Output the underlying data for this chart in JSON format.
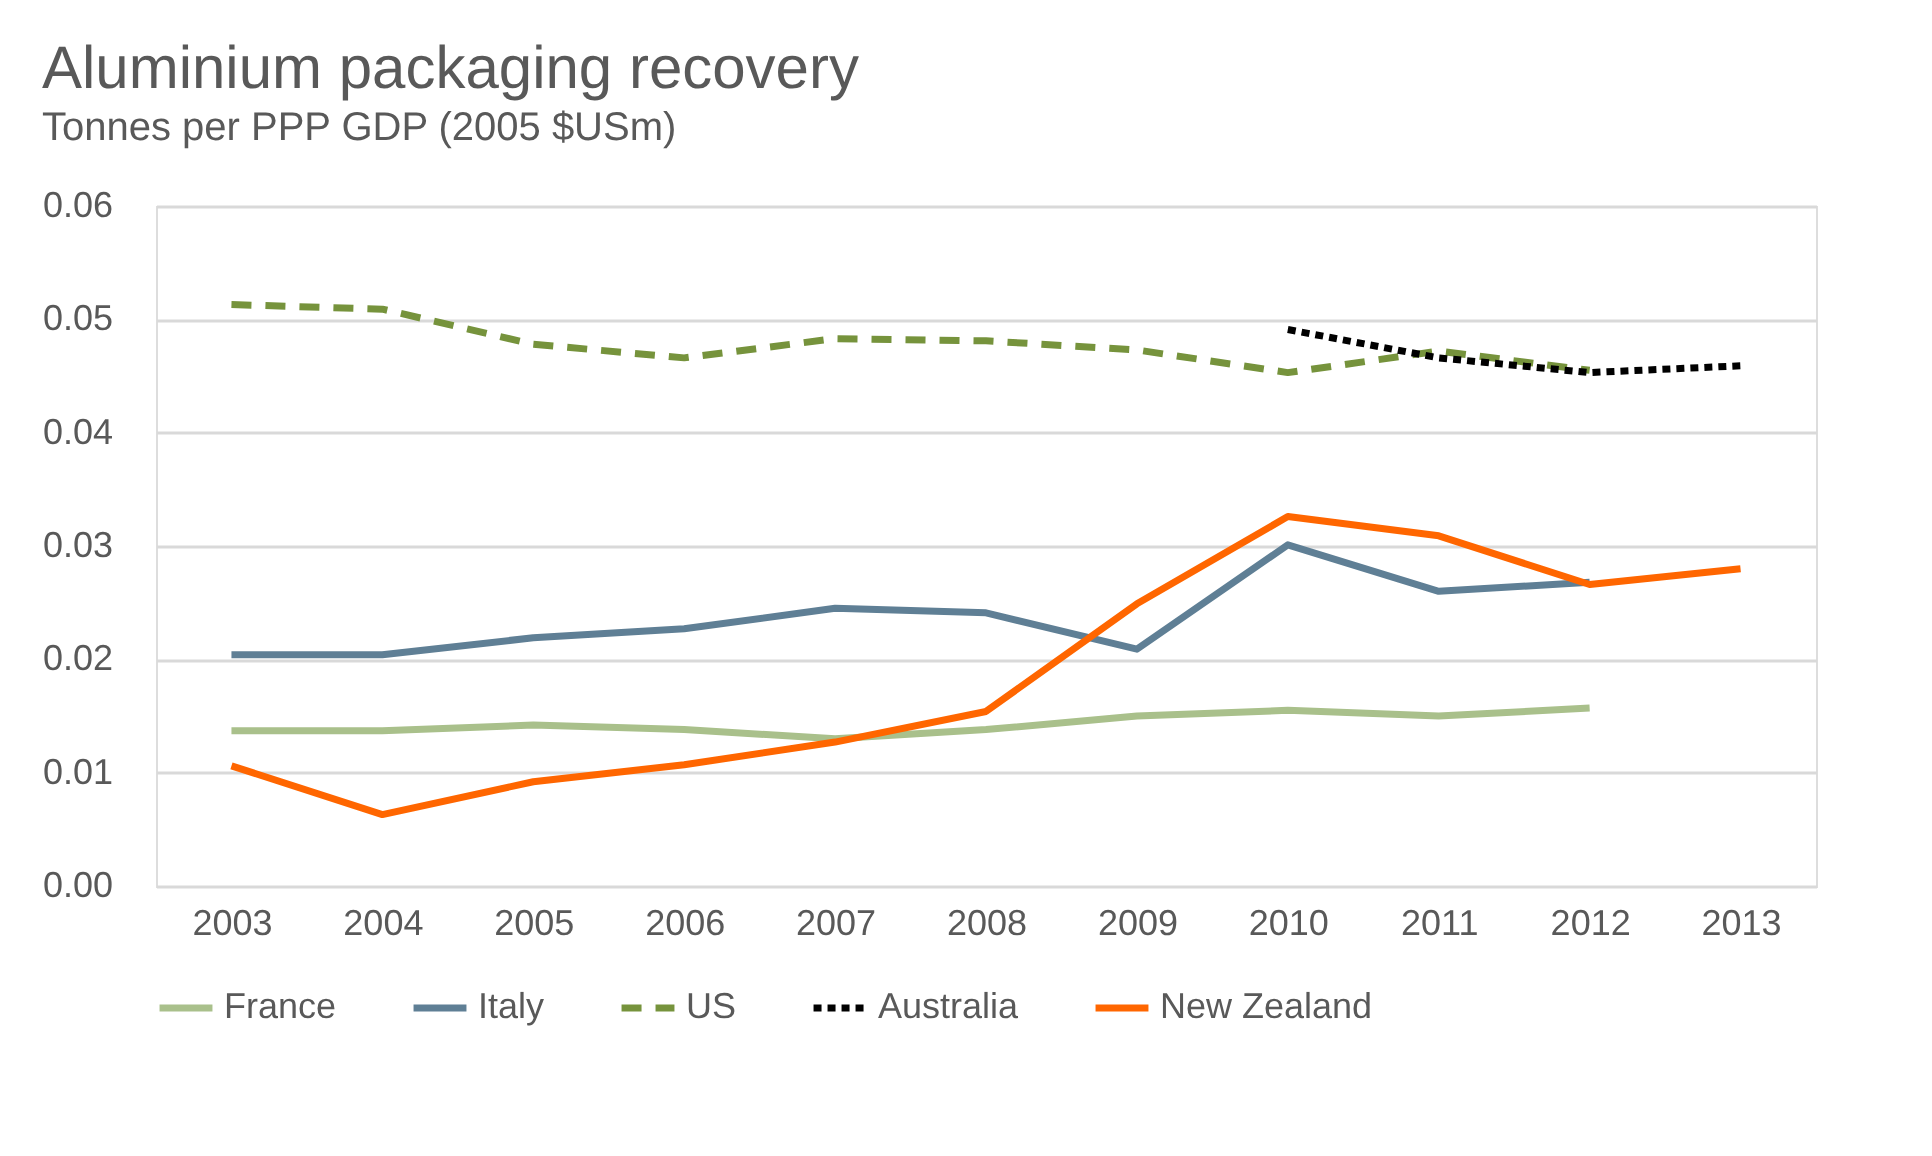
{
  "chart_data": {
    "type": "line",
    "title": "Aluminium packaging recovery",
    "subtitle": "Tonnes per PPP GDP (2005 $USm)",
    "categories": [
      "2003",
      "2004",
      "2005",
      "2006",
      "2007",
      "2008",
      "2009",
      "2010",
      "2011",
      "2012",
      "2013"
    ],
    "ylim": [
      0,
      0.06
    ],
    "yticks": [
      {
        "value": 0,
        "label": "0.00"
      },
      0.01,
      0.02,
      0.03,
      0.04,
      0.05,
      0.06
    ],
    "grid": "y",
    "legend": "bottom",
    "series": [
      {
        "name": "France",
        "color": "#a9c08b",
        "line_style": "solid",
        "values": [
          0.0137,
          0.0137,
          0.0142,
          0.0138,
          0.013,
          0.0138,
          0.015,
          0.0155,
          0.015,
          0.0157,
          null
        ]
      },
      {
        "name": "Italy",
        "color": "#5f7f95",
        "line_style": "solid",
        "values": [
          0.0204,
          0.0204,
          0.0219,
          0.0227,
          0.0245,
          0.0241,
          0.0209,
          0.0301,
          0.026,
          0.0268,
          null
        ]
      },
      {
        "name": "US",
        "color": "#76933c",
        "line_style": "dashed",
        "values": [
          0.0513,
          0.0509,
          0.0478,
          0.0466,
          0.0483,
          0.0481,
          0.0473,
          0.0453,
          0.0472,
          0.0455,
          null
        ]
      },
      {
        "name": "Australia",
        "color": "#000000",
        "line_style": "dotted",
        "values": [
          null,
          null,
          null,
          null,
          null,
          null,
          null,
          0.0491,
          0.0466,
          0.0453,
          0.0459
        ]
      },
      {
        "name": "New Zealand",
        "color": "#ff6600",
        "line_style": "solid",
        "values": [
          0.0106,
          0.0063,
          0.0092,
          0.0107,
          0.0127,
          0.0154,
          0.0249,
          0.0326,
          0.0309,
          0.0266,
          0.028
        ]
      }
    ]
  }
}
